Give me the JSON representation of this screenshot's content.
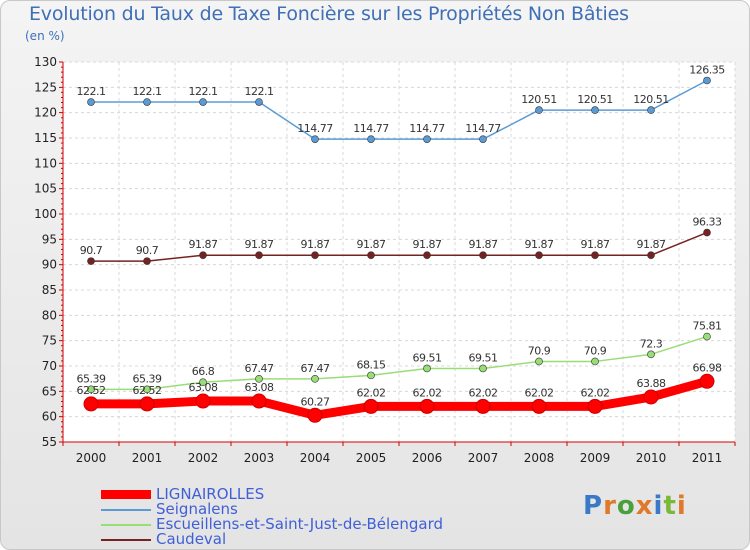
{
  "title": "Evolution du Taux de Taxe Foncière sur les Propriétés Non Bâties",
  "subtitle": "(en %)",
  "logo": {
    "letters": [
      "P",
      "r",
      "o",
      "x",
      "i",
      "t",
      "i"
    ],
    "colors": [
      "#3a78c8",
      "#e07a2a",
      "#4aa03a",
      "#e07a2a",
      "#3a78c8",
      "#7ab83a",
      "#e07a2a"
    ]
  },
  "chart_data": {
    "type": "line",
    "categories": [
      "2000",
      "2001",
      "2002",
      "2003",
      "2004",
      "2005",
      "2006",
      "2007",
      "2008",
      "2009",
      "2010",
      "2011"
    ],
    "ylim": [
      55,
      130
    ],
    "yticks": [
      "55",
      "60",
      "65",
      "70",
      "75",
      "80",
      "85",
      "90",
      "95",
      "100",
      "105",
      "110",
      "115",
      "120",
      "125",
      "130"
    ],
    "series": [
      {
        "name": "LIGNAIROLLES",
        "color": "#ff0000",
        "values": [
          62.52,
          62.52,
          63.08,
          63.08,
          60.27,
          62.02,
          62.02,
          62.02,
          62.02,
          62.02,
          63.88,
          66.98
        ],
        "labels": [
          "62.52",
          "62.52",
          "63.08",
          "63.08",
          "60.27",
          "62.02",
          "62.02",
          "62.02",
          "62.02",
          "62.02",
          "63.88",
          "66.98"
        ]
      },
      {
        "name": "Seignalens",
        "color": "#5b9bd5",
        "values": [
          122.1,
          122.1,
          122.1,
          122.1,
          114.77,
          114.77,
          114.77,
          114.77,
          120.51,
          120.51,
          120.51,
          126.35
        ],
        "labels": [
          "122.1",
          "122.1",
          "122.1",
          "122.1",
          "114.77",
          "114.77",
          "114.77",
          "114.77",
          "120.51",
          "120.51",
          "120.51",
          "126.35"
        ]
      },
      {
        "name": "Escueillens-et-Saint-Just-de-Bélengard",
        "color": "#99dd77",
        "values": [
          65.39,
          65.39,
          66.8,
          67.47,
          67.47,
          68.15,
          69.51,
          69.51,
          70.9,
          70.9,
          72.3,
          75.81
        ],
        "labels": [
          "65.39",
          "65.39",
          "66.8",
          "67.47",
          "67.47",
          "68.15",
          "69.51",
          "69.51",
          "70.9",
          "70.9",
          "72.3",
          "75.81"
        ]
      },
      {
        "name": "Caudeval",
        "color": "#772222",
        "values": [
          90.7,
          90.7,
          91.87,
          91.87,
          91.87,
          91.87,
          91.87,
          91.87,
          91.87,
          91.87,
          91.87,
          96.33
        ],
        "labels": [
          "90.7",
          "90.7",
          "91.87",
          "91.87",
          "91.87",
          "91.87",
          "91.87",
          "91.87",
          "91.87",
          "91.87",
          "91.87",
          "96.33"
        ]
      }
    ]
  }
}
